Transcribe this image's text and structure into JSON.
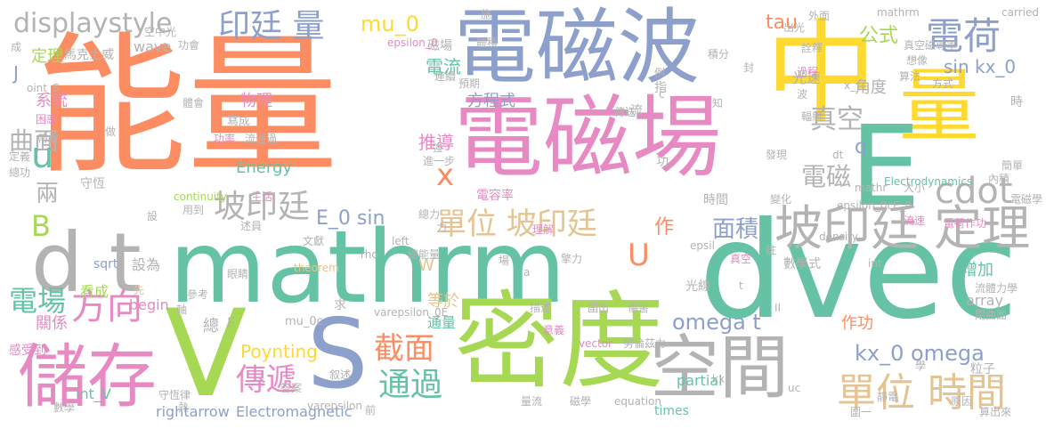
{
  "palette": {
    "orange": "#fc8d62",
    "green": "#66c2a5",
    "blue": "#8da0cb",
    "pink": "#e78ac3",
    "lime": "#a6d854",
    "yellow": "#ffd92f",
    "tan": "#e5c494",
    "gray": "#b3b3b3"
  },
  "words": [
    {
      "text": "能量",
      "color": "orange",
      "vertical": false
    },
    {
      "text": "電磁波",
      "color": "blue",
      "vertical": false
    },
    {
      "text": "中",
      "color": "yellow",
      "vertical": false
    },
    {
      "text": "量",
      "color": "yellow",
      "vertical": false
    },
    {
      "text": "電磁場",
      "color": "pink",
      "vertical": false
    },
    {
      "text": "mathrm",
      "color": "green",
      "vertical": false
    },
    {
      "text": "dvec",
      "color": "green",
      "vertical": false
    },
    {
      "text": "d t",
      "color": "gray",
      "vertical": false
    },
    {
      "text": "V",
      "color": "lime",
      "vertical": false
    },
    {
      "text": "S",
      "color": "blue",
      "vertical": false
    },
    {
      "text": "密度",
      "color": "lime",
      "vertical": false
    },
    {
      "text": "儲存",
      "color": "pink",
      "vertical": false
    },
    {
      "text": "空間",
      "color": "gray",
      "vertical": false
    },
    {
      "text": "E",
      "color": "green",
      "vertical": false
    },
    {
      "text": "坡印廷 定理",
      "color": "gray",
      "vertical": false
    },
    {
      "text": "單位 時間",
      "color": "tan",
      "vertical": false
    },
    {
      "text": "cdot",
      "color": "gray",
      "vertical": false
    },
    {
      "text": "電荷",
      "color": "blue",
      "vertical": false
    },
    {
      "text": "displaystyle",
      "color": "gray",
      "vertical": false
    },
    {
      "text": "印廷 量",
      "color": "blue",
      "vertical": false
    },
    {
      "text": "mu_0",
      "color": "yellow",
      "vertical": false
    },
    {
      "text": "坡印廷",
      "color": "gray",
      "vertical": false
    },
    {
      "text": "單位 坡印廷",
      "color": "tan",
      "vertical": false
    },
    {
      "text": "截面",
      "color": "orange",
      "vertical": false
    },
    {
      "text": "通過",
      "color": "green",
      "vertical": false
    },
    {
      "text": "傳遞",
      "color": "pink",
      "vertical": false
    },
    {
      "text": "方向",
      "color": "pink",
      "vertical": false
    },
    {
      "text": "電場",
      "color": "green",
      "vertical": false
    },
    {
      "text": "曲面",
      "color": "gray",
      "vertical": false
    },
    {
      "text": "兩",
      "color": "gray",
      "vertical": false
    },
    {
      "text": "電磁",
      "color": "gray",
      "vertical": false
    },
    {
      "text": "真空",
      "color": "gray",
      "vertical": false
    },
    {
      "text": "omega t",
      "color": "blue",
      "vertical": false
    },
    {
      "text": "kx_0 omega",
      "color": "blue",
      "vertical": false
    },
    {
      "text": "E_0 sin",
      "color": "blue",
      "vertical": false
    },
    {
      "text": "Poynting",
      "color": "yellow",
      "vertical": false
    },
    {
      "text": "tau",
      "color": "orange",
      "vertical": false
    },
    {
      "text": "公式",
      "color": "lime",
      "vertical": false
    },
    {
      "text": "sin kx_0",
      "color": "blue",
      "vertical": false
    },
    {
      "text": "面積",
      "color": "blue",
      "vertical": false
    },
    {
      "text": "u",
      "color": "green",
      "vertical": false
    },
    {
      "text": "U",
      "color": "orange",
      "vertical": false
    },
    {
      "text": "B",
      "color": "lime",
      "vertical": false
    },
    {
      "text": "J",
      "color": "blue",
      "vertical": false
    },
    {
      "text": "x",
      "color": "orange",
      "vertical": false
    },
    {
      "text": "q",
      "color": "blue",
      "vertical": false
    },
    {
      "text": "Energy",
      "color": "green",
      "vertical": false
    },
    {
      "text": "總",
      "color": "gray",
      "vertical": false
    },
    {
      "text": "rightarrow",
      "color": "blue",
      "vertical": false
    },
    {
      "text": "Electromagnetic",
      "color": "blue",
      "vertical": false
    },
    {
      "text": "partial",
      "color": "green",
      "vertical": false
    },
    {
      "text": "times",
      "color": "green",
      "vertical": false
    },
    {
      "text": "作",
      "color": "orange",
      "vertical": false
    },
    {
      "text": "int_V",
      "color": "green",
      "vertical": false
    },
    {
      "text": "sqrt",
      "color": "blue",
      "vertical": false
    },
    {
      "text": "wave",
      "color": "gray",
      "vertical": false
    },
    {
      "text": "array",
      "color": "gray",
      "vertical": false
    },
    {
      "text": "作功",
      "color": "orange",
      "vertical": false
    },
    {
      "text": "增加",
      "color": "green",
      "vertical": false
    },
    {
      "text": "角度",
      "color": "gray",
      "vertical": false
    },
    {
      "text": "電流",
      "color": "green",
      "vertical": false
    },
    {
      "text": "磁場",
      "color": "gray",
      "vertical": false
    },
    {
      "text": "推導",
      "color": "pink",
      "vertical": false
    },
    {
      "text": "方程式",
      "color": "blue",
      "vertical": false
    },
    {
      "text": "物理",
      "color": "pink",
      "vertical": false
    },
    {
      "text": "定理",
      "color": "lime",
      "vertical": false
    },
    {
      "text": "系統",
      "color": "pink",
      "vertical": false
    },
    {
      "text": "關係",
      "color": "pink",
      "vertical": false
    },
    {
      "text": "看成",
      "color": "lime",
      "vertical": false
    },
    {
      "text": "設為",
      "color": "gray",
      "vertical": false
    },
    {
      "text": "等於",
      "color": "tan",
      "vertical": false
    },
    {
      "text": "通量",
      "color": "green",
      "vertical": false
    },
    {
      "text": "時間",
      "color": "gray",
      "vertical": false
    },
    {
      "text": "begin",
      "color": "pink",
      "vertical": false
    },
    {
      "text": "守恆",
      "color": "gray",
      "vertical": false
    },
    {
      "text": "光速",
      "color": "gray",
      "vertical": false
    },
    {
      "text": "感受到",
      "color": "pink",
      "vertical": false
    },
    {
      "text": "求",
      "color": "gray",
      "vertical": false
    },
    {
      "text": "W",
      "color": "tan",
      "vertical": false
    },
    {
      "text": "F",
      "color": "gray",
      "vertical": false
    },
    {
      "text": "mu_0c",
      "color": "gray",
      "vertical": false
    },
    {
      "text": "功",
      "color": "gray",
      "vertical": false
    },
    {
      "text": "數學式",
      "color": "gray",
      "vertical": false
    },
    {
      "text": "epsilon_0",
      "color": "pink",
      "vertical": false
    },
    {
      "text": "mathrm",
      "color": "gray",
      "vertical": false
    },
    {
      "text": "varepsilon_0E",
      "color": "gray",
      "vertical": false
    },
    {
      "text": "epsilon_0cE_0",
      "color": "gray",
      "vertical": false
    },
    {
      "text": "Electrodynamics",
      "color": "green",
      "vertical": false
    },
    {
      "text": "continuity",
      "color": "lime",
      "vertical": false
    },
    {
      "text": "theorem",
      "color": "tan",
      "vertical": false
    },
    {
      "text": "vector",
      "color": "pink",
      "vertical": false
    },
    {
      "text": "density",
      "color": "gray",
      "vertical": false
    },
    {
      "text": "equation",
      "color": "gray",
      "vertical": false
    },
    {
      "text": "流體力學",
      "color": "gray",
      "vertical": false
    },
    {
      "text": "閉曲面",
      "color": "gray",
      "vertical": false
    },
    {
      "text": "守恆律",
      "color": "gray",
      "vertical": false
    },
    {
      "text": "叙述",
      "color": "gray",
      "vertical": false
    },
    {
      "text": "答案",
      "color": "gray",
      "vertical": false
    },
    {
      "text": "描述",
      "color": "gray",
      "vertical": false
    },
    {
      "text": "圍出",
      "color": "gray",
      "vertical": false
    },
    {
      "text": "傷害",
      "color": "gray",
      "vertical": false
    },
    {
      "text": "意義",
      "color": "pink",
      "vertical": false
    },
    {
      "text": "勞倫茲力",
      "color": "gray",
      "vertical": false
    },
    {
      "text": "體會",
      "color": "gray",
      "vertical": false
    },
    {
      "text": "寫成",
      "color": "gray",
      "vertical": false
    },
    {
      "text": "功率",
      "color": "pink",
      "vertical": false
    },
    {
      "text": "流通過",
      "color": "gray",
      "vertical": false
    },
    {
      "text": "進一步",
      "color": "gray",
      "vertical": false
    },
    {
      "text": "強",
      "color": "gray",
      "vertical": false
    },
    {
      "text": "流",
      "color": "gray",
      "vertical": false
    },
    {
      "text": "指",
      "color": "gray",
      "vertical": false
    },
    {
      "text": "傳送",
      "color": "gray",
      "vertical": false
    },
    {
      "text": "變化",
      "color": "gray",
      "vertical": false
    },
    {
      "text": "發現",
      "color": "gray",
      "vertical": false
    },
    {
      "text": "過程",
      "color": "pink",
      "vertical": false
    },
    {
      "text": "波",
      "color": "gray",
      "vertical": false
    },
    {
      "text": "輻射",
      "color": "gray",
      "vertical": false
    },
    {
      "text": "想像",
      "color": "gray",
      "vertical": false
    },
    {
      "text": "方式",
      "color": "gray",
      "vertical": false
    },
    {
      "text": "大小",
      "color": "gray",
      "vertical": false
    },
    {
      "text": "流速",
      "color": "pink",
      "vertical": false
    },
    {
      "text": "電荷作功",
      "color": "pink",
      "vertical": false
    },
    {
      "text": "內積",
      "color": "gray",
      "vertical": false
    },
    {
      "text": "電磁學",
      "color": "gray",
      "vertical": false
    },
    {
      "text": "粒子",
      "color": "gray",
      "vertical": false
    },
    {
      "text": "學",
      "color": "gray",
      "vertical": false
    },
    {
      "text": "連續",
      "color": "gray",
      "vertical": false
    },
    {
      "text": "預期",
      "color": "gray",
      "vertical": false
    },
    {
      "text": "算法",
      "color": "gray",
      "vertical": false
    },
    {
      "text": "詮釋",
      "color": "gray",
      "vertical": false
    },
    {
      "text": "積分",
      "color": "gray",
      "vertical": false
    },
    {
      "text": "封",
      "color": "gray",
      "vertical": false
    },
    {
      "text": "施",
      "color": "gray",
      "vertical": false
    },
    {
      "text": "外面",
      "color": "gray",
      "vertical": false
    },
    {
      "text": "出光",
      "color": "gray",
      "vertical": false
    },
    {
      "text": "空中光",
      "color": "gray",
      "vertical": false
    },
    {
      "text": "oint_S",
      "color": "gray",
      "vertical": false
    },
    {
      "text": "馬克士威",
      "color": "gray",
      "vertical": false
    },
    {
      "text": "成",
      "color": "gray",
      "vertical": false
    },
    {
      "text": "功會",
      "color": "gray",
      "vertical": false
    },
    {
      "text": "定義",
      "color": "gray",
      "vertical": false
    },
    {
      "text": "總功",
      "color": "gray",
      "vertical": false
    },
    {
      "text": "帶電",
      "color": "gray",
      "vertical": false
    },
    {
      "text": "困惑",
      "color": "pink",
      "vertical": false
    },
    {
      "text": "做",
      "color": "gray",
      "vertical": false
    },
    {
      "text": "設",
      "color": "gray",
      "vertical": false
    },
    {
      "text": "文獻",
      "color": "gray",
      "vertical": false
    },
    {
      "text": "眼睛",
      "color": "gray",
      "vertical": false
    },
    {
      "text": "參考",
      "color": "gray",
      "vertical": false
    },
    {
      "text": "軸",
      "color": "gray",
      "vertical": false
    },
    {
      "text": "生活",
      "color": "pink",
      "vertical": false
    },
    {
      "text": "用到",
      "color": "gray",
      "vertical": false
    },
    {
      "text": "述員",
      "color": "gray",
      "vertical": false
    },
    {
      "text": "總能量",
      "color": "gray",
      "vertical": false
    },
    {
      "text": "總力",
      "color": "gray",
      "vertical": false
    },
    {
      "text": "電容率",
      "color": "pink",
      "vertical": false
    },
    {
      "text": "力",
      "color": "gray",
      "vertical": false
    },
    {
      "text": "left",
      "color": "gray",
      "vertical": false
    },
    {
      "text": "rho",
      "color": "gray",
      "vertical": false
    },
    {
      "text": "varepsilon",
      "color": "gray",
      "vertical": false
    },
    {
      "text": "數學",
      "color": "gray",
      "vertical": false
    },
    {
      "text": "熱",
      "color": "gray",
      "vertical": false
    },
    {
      "text": "前",
      "color": "gray",
      "vertical": false
    },
    {
      "text": "量流",
      "color": "gray",
      "vertical": false
    },
    {
      "text": "磁學",
      "color": "gray",
      "vertical": false
    },
    {
      "text": "光線",
      "color": "gray",
      "vertical": false
    },
    {
      "text": "epsil",
      "color": "gray",
      "vertical": false
    },
    {
      "text": "真空",
      "color": "pink",
      "vertical": false
    },
    {
      "text": "註",
      "color": "gray",
      "vertical": false
    },
    {
      "text": "int",
      "color": "gray",
      "vertical": false
    },
    {
      "text": "靜電",
      "color": "gray",
      "vertical": false
    },
    {
      "text": "原因",
      "color": "gray",
      "vertical": false
    },
    {
      "text": "算出來",
      "color": "gray",
      "vertical": false
    },
    {
      "text": "簡單",
      "color": "gray",
      "vertical": false
    },
    {
      "text": "時",
      "color": "gray",
      "vertical": false
    },
    {
      "text": "真空磁導率",
      "color": "gray",
      "vertical": false
    },
    {
      "text": "carried",
      "color": "gray",
      "vertical": false
    },
    {
      "text": "例",
      "color": "gray",
      "vertical": false
    },
    {
      "text": "知",
      "color": "gray",
      "vertical": false
    },
    {
      "text": "c",
      "color": "gray",
      "vertical": false
    },
    {
      "text": "dt",
      "color": "gray",
      "vertical": false
    },
    {
      "text": "x_",
      "color": "gray",
      "vertical": false
    },
    {
      "text": "mathr",
      "color": "gray",
      "vertical": false
    },
    {
      "text": "kx",
      "color": "gray",
      "vertical": false
    },
    {
      "text": "uc",
      "color": "gray",
      "vertical": false
    },
    {
      "text": "場",
      "color": "gray",
      "vertical": false
    },
    {
      "text": "a",
      "color": "gray",
      "vertical": false
    },
    {
      "text": "t",
      "color": "gray",
      "vertical": false
    },
    {
      "text": "II",
      "color": "gray",
      "vertical": false
    },
    {
      "text": "圍一",
      "color": "gray",
      "vertical": false
    },
    {
      "text": "理解",
      "color": "pink",
      "vertical": false
    },
    {
      "text": "擎力",
      "color": "gray",
      "vertical": false
    },
    {
      "text": "先",
      "color": "tan",
      "vertical": false
    },
    {
      "text": "體積",
      "color": "gray",
      "vertical": false
    }
  ]
}
